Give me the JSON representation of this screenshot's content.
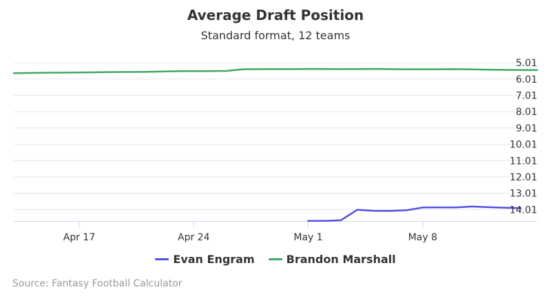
{
  "chart_data": {
    "type": "line",
    "title": "Average Draft Position",
    "subtitle": "Standard format, 12 teams",
    "x_range": [
      "2017-04-13",
      "2017-05-15"
    ],
    "x_ticks": [
      {
        "date": "2017-04-17",
        "label": "Apr 17"
      },
      {
        "date": "2017-04-24",
        "label": "Apr 24"
      },
      {
        "date": "2017-05-01",
        "label": "May 1"
      },
      {
        "date": "2017-05-08",
        "label": "May 8"
      }
    ],
    "y_range": [
      4.71,
      14.71
    ],
    "y_reversed": true,
    "y_ticks": [
      "5.01",
      "6.01",
      "7.01",
      "8.01",
      "9.01",
      "10.01",
      "11.01",
      "12.01",
      "13.01",
      "14.01"
    ],
    "grid": true,
    "legend_position": "bottom",
    "series": [
      {
        "name": "Evan Engram",
        "color": "#5050e0",
        "points": [
          [
            "2017-05-01",
            14.7
          ],
          [
            "2017-05-02",
            14.7
          ],
          [
            "2017-05-03",
            14.66
          ],
          [
            "2017-05-04",
            14.02
          ],
          [
            "2017-05-05",
            14.08
          ],
          [
            "2017-05-06",
            14.09
          ],
          [
            "2017-05-07",
            14.05
          ],
          [
            "2017-05-08",
            13.88
          ],
          [
            "2017-05-09",
            13.87
          ],
          [
            "2017-05-10",
            13.88
          ],
          [
            "2017-05-11",
            13.82
          ],
          [
            "2017-05-12",
            13.86
          ],
          [
            "2017-05-13",
            13.89
          ],
          [
            "2017-05-14",
            13.92
          ]
        ]
      },
      {
        "name": "Brandon Marshall",
        "color": "#3fa75f",
        "points": [
          [
            "2017-04-13",
            5.65
          ],
          [
            "2017-04-15",
            5.62
          ],
          [
            "2017-04-17",
            5.61
          ],
          [
            "2017-04-19",
            5.58
          ],
          [
            "2017-04-21",
            5.57
          ],
          [
            "2017-04-23",
            5.53
          ],
          [
            "2017-04-25",
            5.52
          ],
          [
            "2017-04-26",
            5.51
          ],
          [
            "2017-04-27",
            5.41
          ],
          [
            "2017-04-28",
            5.4
          ],
          [
            "2017-04-30",
            5.4
          ],
          [
            "2017-05-01",
            5.39
          ],
          [
            "2017-05-03",
            5.4
          ],
          [
            "2017-05-05",
            5.39
          ],
          [
            "2017-05-07",
            5.41
          ],
          [
            "2017-05-09",
            5.41
          ],
          [
            "2017-05-10",
            5.4
          ],
          [
            "2017-05-12",
            5.43
          ],
          [
            "2017-05-13",
            5.45
          ],
          [
            "2017-05-15",
            5.46
          ]
        ]
      }
    ]
  },
  "source_label": "Source: Fantasy Football Calculator"
}
